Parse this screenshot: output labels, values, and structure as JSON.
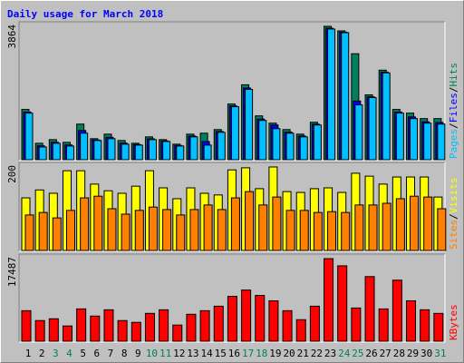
{
  "chart_data": {
    "title": "Daily usage for March 2018",
    "title_color": "#0000ff",
    "categories": [
      "1",
      "2",
      "3",
      "4",
      "5",
      "6",
      "7",
      "8",
      "9",
      "10",
      "11",
      "12",
      "13",
      "14",
      "15",
      "16",
      "17",
      "18",
      "19",
      "20",
      "21",
      "22",
      "23",
      "24",
      "25",
      "26",
      "27",
      "28",
      "29",
      "30",
      "31"
    ],
    "category_colors": [
      "#000000",
      "#000000",
      "#00805c",
      "#00805c",
      "#000000",
      "#000000",
      "#000000",
      "#000000",
      "#000000",
      "#00805c",
      "#00805c",
      "#000000",
      "#000000",
      "#000000",
      "#000000",
      "#000000",
      "#00805c",
      "#00805c",
      "#000000",
      "#000000",
      "#000000",
      "#000000",
      "#000000",
      "#00805c",
      "#00805c",
      "#000000",
      "#000000",
      "#000000",
      "#000000",
      "#000000",
      "#00805c"
    ],
    "panels": [
      {
        "type": "bar",
        "ylim": [
          0,
          3864
        ],
        "legend_separator": "/",
        "series": [
          {
            "name": "Hits",
            "color": "#00805c",
            "values": [
              1456,
              476,
              582,
              503,
              1032,
              609,
              741,
              556,
              476,
              662,
              582,
              450,
              741,
              768,
              873,
              1614,
              2170,
              1270,
              1059,
              873,
              741,
              1085,
              3864,
              3732,
              3070,
              1879,
              2594,
              1456,
              1350,
              1191,
              1191
            ]
          },
          {
            "name": "Files",
            "color": "#0000ff",
            "values": [
              1382,
              402,
              508,
              429,
              847,
              572,
              649,
              482,
              439,
              606,
              545,
              413,
              686,
              527,
              818,
              1559,
              2078,
              1178,
              1006,
              800,
              686,
              1030,
              3809,
              3695,
              1700,
              1824,
              2538,
              1382,
              1239,
              1099,
              1080
            ]
          },
          {
            "name": "Pages",
            "color": "#00c0ff",
            "values": [
              1350,
              370,
              476,
              397,
              768,
              556,
              609,
              450,
              423,
              582,
              529,
              397,
              662,
              423,
              794,
              1535,
              2038,
              1138,
              900,
              768,
              662,
              1006,
              3785,
              3679,
              1588,
              1800,
              2514,
              1350,
              1191,
              1059,
              1032
            ]
          }
        ]
      },
      {
        "type": "bar",
        "ylim": [
          0,
          200
        ],
        "legend_separator": "/",
        "series": [
          {
            "name": "Visits",
            "color": "#ffff00",
            "values": [
              126,
              145,
              137,
              191,
              191,
              159,
              143,
              137,
              154,
              191,
              150,
              124,
              150,
              137,
              133,
              193,
              198,
              148,
              200,
              141,
              139,
              148,
              150,
              139,
              185,
              178,
              159,
              176,
              176,
              176,
              128
            ]
          },
          {
            "name": "Sites",
            "color": "#ff8000",
            "values": [
              85,
              91,
              78,
              96,
              126,
              130,
              100,
              87,
              96,
              104,
              98,
              85,
              98,
              109,
              98,
              126,
              141,
              109,
              128,
              96,
              96,
              91,
              93,
              91,
              109,
              109,
              113,
              124,
              130,
              128,
              100
            ]
          }
        ]
      },
      {
        "type": "bar",
        "ylim": [
          0,
          17487
        ],
        "legend_separator": "/",
        "series": [
          {
            "name": "KBytes",
            "color": "#ff0000",
            "values": [
              6463,
              4372,
              4752,
              3231,
              6843,
              5322,
              6653,
              4372,
              3992,
              5892,
              6653,
              3422,
              5702,
              6463,
              7414,
              9505,
              10836,
              9695,
              8555,
              6463,
              4562,
              7414,
              17487,
              15966,
              7034,
              13685,
              6843,
              12925,
              8555,
              6653,
              5892
            ]
          }
        ]
      }
    ]
  }
}
